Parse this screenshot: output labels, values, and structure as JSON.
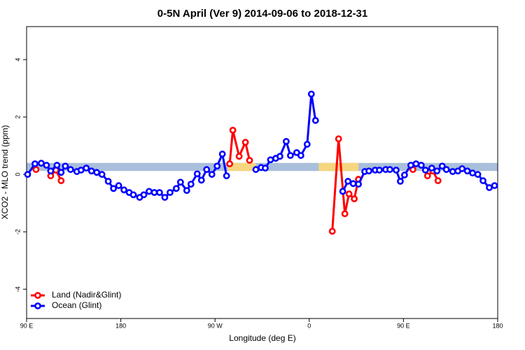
{
  "chart_data": {
    "type": "line",
    "title": "0-5N April (Ver 9)   2014-09-06 to 2018-12-31",
    "x_label": "Longitude (deg E)",
    "y_label": "XCO2 - MLO trend (ppm)",
    "xlim": [
      90,
      540
    ],
    "ylim": [
      -5.02,
      5.15
    ],
    "xticks": [
      {
        "value": 90,
        "label": "90 E"
      },
      180,
      {
        "value": 270,
        "label": "90 W"
      },
      {
        "value": 360,
        "label": "0"
      },
      {
        "value": 450,
        "label": "90 E"
      },
      {
        "value": 540,
        "label": "180"
      }
    ],
    "yticks": [
      -4,
      -2,
      0,
      2,
      4
    ],
    "legend": "bottom-left",
    "band": {
      "y": [
        0.12,
        0.4
      ],
      "segments": [
        {
          "x": [
            90,
            540
          ],
          "color": "#a9bfdc"
        },
        {
          "x": [
            282,
            309
          ],
          "color": "#f6d67e"
        },
        {
          "x": [
            369,
            407
          ],
          "color": "#f6d67e"
        }
      ]
    },
    "series": [
      {
        "name": "Land (Nadir&Glint)",
        "color": "#ff0000",
        "x": [
          99,
          106,
          113,
          118,
          123,
          200,
          284,
          287,
          293,
          299,
          303,
          340,
          382,
          388,
          394,
          398,
          403,
          407,
          430,
          459,
          466,
          473,
          478,
          483
        ],
        "values": [
          0.17,
          null,
          -0.05,
          0.15,
          -0.22,
          null,
          0.37,
          1.54,
          0.63,
          1.12,
          0.49,
          null,
          -1.98,
          1.24,
          -1.37,
          -0.68,
          -0.85,
          -0.17,
          null,
          0.17,
          null,
          -0.05,
          0.12,
          -0.22
        ]
      },
      {
        "name": "Ocean (Glint)",
        "color": "#0000ff",
        "x": [
          91,
          98,
          104,
          109,
          113,
          119,
          123,
          127,
          132,
          138,
          142,
          147,
          152,
          157,
          162,
          168,
          173,
          178,
          183,
          188,
          192,
          198,
          202,
          207,
          212,
          217,
          222,
          227,
          233,
          237,
          243,
          247,
          253,
          257,
          262,
          267,
          272,
          277,
          281,
          295,
          309,
          314,
          318,
          323,
          328,
          332,
          338,
          342,
          348,
          352,
          358,
          362,
          366,
          380,
          392,
          397,
          402,
          407,
          413,
          417,
          423,
          427,
          433,
          437,
          443,
          447,
          451,
          457,
          462,
          467,
          471,
          477,
          482,
          487,
          491,
          497,
          502,
          506,
          511,
          516,
          521,
          526,
          532,
          537
        ],
        "values": [
          0,
          0.37,
          0.39,
          0.32,
          0.12,
          0.32,
          0.07,
          0.29,
          0.17,
          0.1,
          0.15,
          0.22,
          0.12,
          0.07,
          0,
          -0.24,
          -0.49,
          -0.39,
          -0.54,
          -0.63,
          -0.71,
          -0.8,
          -0.71,
          -0.59,
          -0.63,
          -0.63,
          -0.8,
          -0.63,
          -0.49,
          -0.27,
          -0.56,
          -0.34,
          0.02,
          -0.2,
          0.17,
          0,
          0.29,
          0.71,
          -0.05,
          null,
          0.17,
          0.24,
          0.22,
          0.51,
          0.56,
          0.63,
          1.15,
          0.66,
          0.76,
          0.66,
          1.05,
          2.8,
          1.88,
          null,
          -0.59,
          -0.24,
          -0.32,
          -0.34,
          0.1,
          0.12,
          0.15,
          0.15,
          0.17,
          0.17,
          0.15,
          -0.24,
          -0.02,
          0.32,
          0.37,
          0.32,
          0.15,
          0.22,
          0.12,
          0.29,
          0.17,
          0.1,
          0.12,
          0.2,
          0.12,
          0.05,
          0,
          -0.22,
          -0.46,
          -0.39
        ]
      }
    ]
  }
}
